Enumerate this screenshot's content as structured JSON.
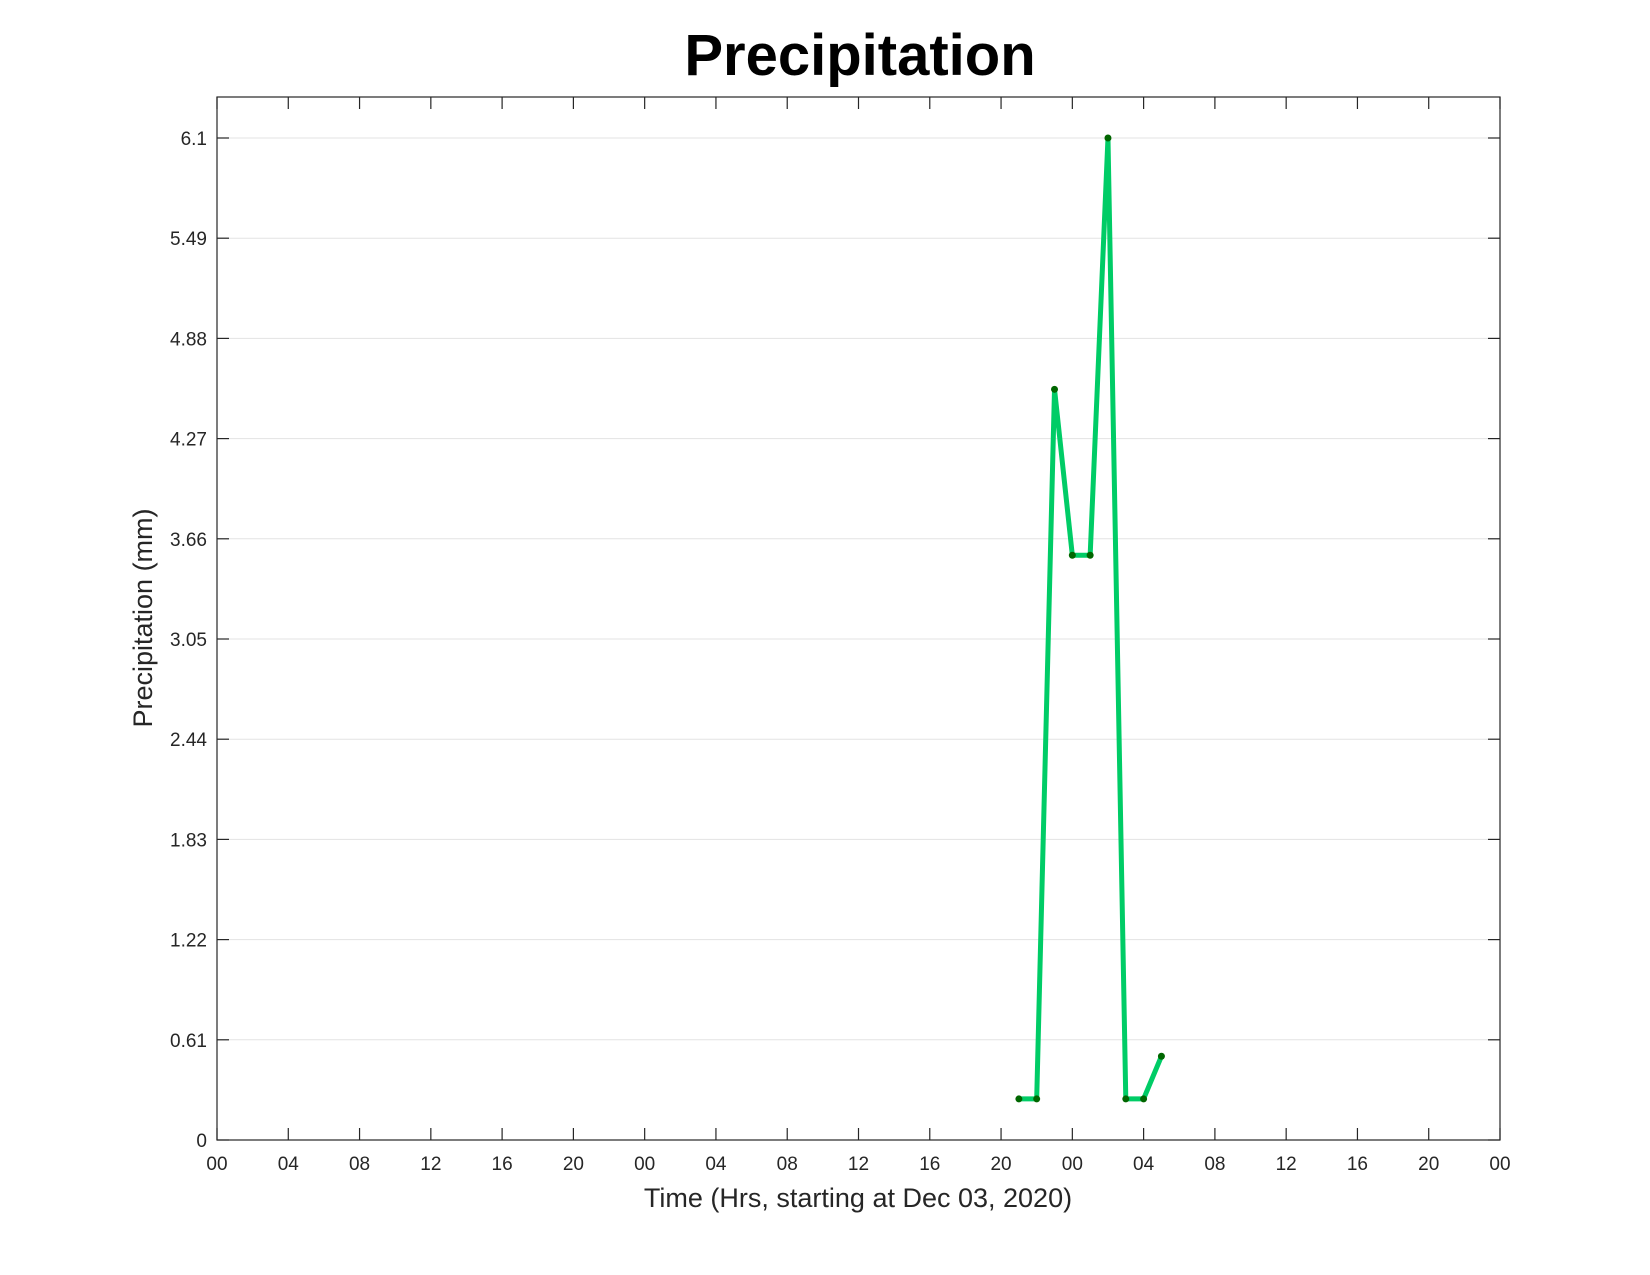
{
  "chart_data": {
    "type": "line",
    "title": "Precipitation",
    "xlabel": "Time (Hrs, starting at Dec 03, 2020)",
    "ylabel": "Precipitation (mm)",
    "x_unit": "hours",
    "xlim": [
      0,
      72
    ],
    "ylim": [
      0,
      6.1
    ],
    "xticks": [
      0,
      4,
      8,
      12,
      16,
      20,
      24,
      28,
      32,
      36,
      40,
      44,
      48,
      52,
      56,
      60,
      64,
      68,
      72
    ],
    "xtick_labels": [
      "00",
      "04",
      "08",
      "12",
      "16",
      "20",
      "00",
      "04",
      "08",
      "12",
      "16",
      "20",
      "00",
      "04",
      "08",
      "12",
      "16",
      "20",
      "00"
    ],
    "yticks": [
      0,
      0.61,
      1.22,
      1.83,
      2.44,
      3.05,
      3.66,
      4.27,
      4.88,
      5.49,
      6.1
    ],
    "ytick_labels": [
      "0",
      "0.61",
      "1.22",
      "1.83",
      "2.44",
      "3.05",
      "3.66",
      "4.27",
      "4.88",
      "5.49",
      "6.1"
    ],
    "grid": "horizontal",
    "series": [
      {
        "x": [
          45,
          46,
          47,
          48,
          49,
          50,
          51,
          52,
          53
        ],
        "y": [
          0.25,
          0.25,
          4.57,
          3.56,
          3.56,
          6.1,
          0.25,
          0.25,
          0.51
        ],
        "line_color": "#00cc66",
        "marker_color": "#006600"
      }
    ]
  }
}
